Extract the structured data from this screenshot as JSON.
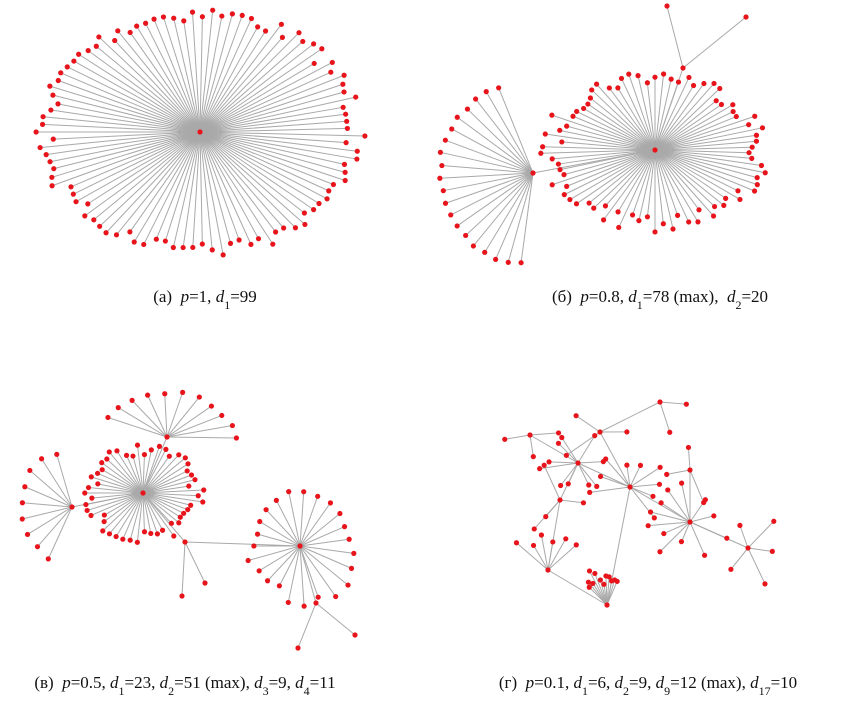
{
  "panels": [
    {
      "caption": [
        {
          "text": "(а)  "
        },
        {
          "text": "p",
          "italic": true
        },
        {
          "text": "=1, "
        },
        {
          "text": "d",
          "italic": true
        },
        {
          "text": "1",
          "sub": true
        },
        {
          "text": "=99"
        }
      ]
    },
    {
      "caption": [
        {
          "text": "(б)  "
        },
        {
          "text": "p",
          "italic": true
        },
        {
          "text": "=0.8, "
        },
        {
          "text": "d",
          "italic": true
        },
        {
          "text": "1",
          "sub": true
        },
        {
          "text": "=78 (max),  "
        },
        {
          "text": "d",
          "italic": true
        },
        {
          "text": "2",
          "sub": true
        },
        {
          "text": "=20"
        }
      ]
    },
    {
      "caption": [
        {
          "text": "(в)  "
        },
        {
          "text": "p",
          "italic": true
        },
        {
          "text": "=0.5, "
        },
        {
          "text": "d",
          "italic": true
        },
        {
          "text": "1",
          "sub": true
        },
        {
          "text": "=23, "
        },
        {
          "text": "d",
          "italic": true
        },
        {
          "text": "2",
          "sub": true
        },
        {
          "text": "=51 (max), "
        },
        {
          "text": "d",
          "italic": true
        },
        {
          "text": "3",
          "sub": true
        },
        {
          "text": "=9, "
        },
        {
          "text": "d",
          "italic": true
        },
        {
          "text": "4",
          "sub": true
        },
        {
          "text": "=11"
        }
      ]
    },
    {
      "caption": [
        {
          "text": "(г)  "
        },
        {
          "text": "p",
          "italic": true
        },
        {
          "text": "=0.1, "
        },
        {
          "text": "d",
          "italic": true
        },
        {
          "text": "1",
          "sub": true
        },
        {
          "text": "=6, "
        },
        {
          "text": "d",
          "italic": true
        },
        {
          "text": "2",
          "sub": true
        },
        {
          "text": "=9, "
        },
        {
          "text": "d",
          "italic": true
        },
        {
          "text": "9",
          "sub": true
        },
        {
          "text": "=12 (max), "
        },
        {
          "text": "d",
          "italic": true
        },
        {
          "text": "17",
          "sub": true
        },
        {
          "text": "=10"
        }
      ]
    }
  ]
}
